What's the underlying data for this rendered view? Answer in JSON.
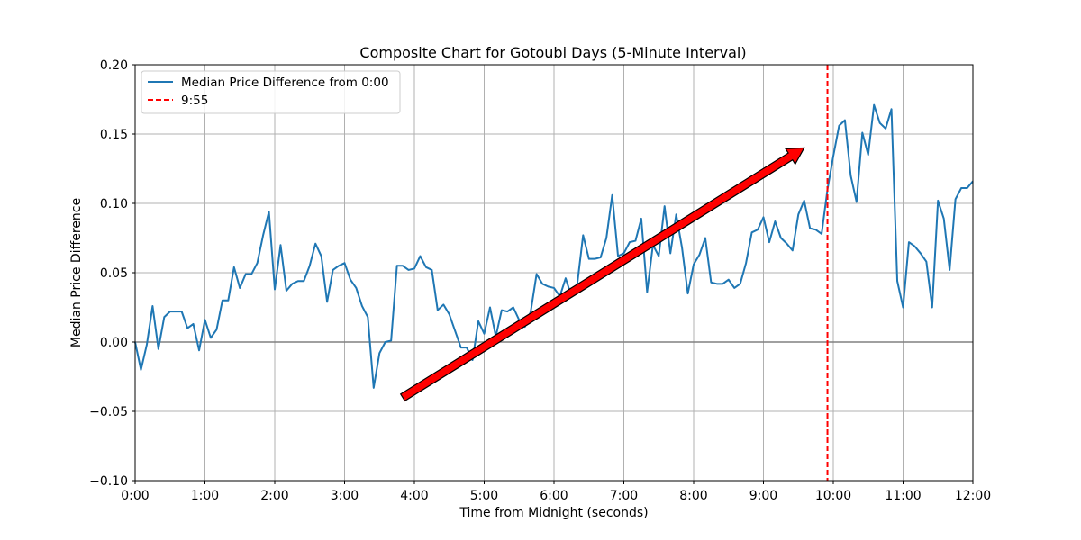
{
  "chart_data": {
    "type": "line",
    "title": "Composite Chart for Gotoubi Days (5-Minute Interval)",
    "xlabel": "Time from Midnight (seconds)",
    "ylabel": "Median Price Difference",
    "xlim_minutes": [
      0,
      720
    ],
    "ylim": [
      -0.1,
      0.2
    ],
    "x_tick_labels": [
      "0:00",
      "1:00",
      "2:00",
      "3:00",
      "4:00",
      "5:00",
      "6:00",
      "7:00",
      "8:00",
      "9:00",
      "10:00",
      "11:00",
      "12:00"
    ],
    "y_tick_labels": [
      "−0.10",
      "−0.05",
      "0.00",
      "0.05",
      "0.10",
      "0.15",
      "0.20"
    ],
    "grid": true,
    "zero_line": true,
    "legend_position": "upper-left",
    "series": [
      {
        "name": "Median Price Difference from 0:00",
        "color": "#1f77b4",
        "style": "solid",
        "x_minutes": [
          0,
          5,
          10,
          15,
          20,
          25,
          30,
          35,
          40,
          45,
          50,
          55,
          60,
          65,
          70,
          75,
          80,
          85,
          90,
          95,
          100,
          105,
          110,
          115,
          120,
          125,
          130,
          135,
          140,
          145,
          150,
          155,
          160,
          165,
          170,
          175,
          180,
          185,
          190,
          195,
          200,
          205,
          210,
          215,
          220,
          225,
          230,
          235,
          240,
          245,
          250,
          255,
          260,
          265,
          270,
          275,
          280,
          285,
          290,
          295,
          300,
          305,
          310,
          315,
          320,
          325,
          330,
          335,
          340,
          345,
          350,
          355,
          360,
          365,
          370,
          375,
          380,
          385,
          390,
          395,
          400,
          405,
          410,
          415,
          420,
          425,
          430,
          435,
          440,
          445,
          450,
          455,
          460,
          465,
          470,
          475,
          480,
          485,
          490,
          495,
          500,
          505,
          510,
          515,
          520,
          525,
          530,
          535,
          540,
          545,
          550,
          555,
          560,
          565,
          570,
          575,
          580,
          585,
          590,
          595,
          600,
          605,
          610,
          615,
          620,
          625,
          630,
          635,
          640,
          645,
          650,
          655,
          660,
          665,
          670,
          675,
          680,
          685,
          690,
          695,
          700,
          705,
          710,
          715,
          720
        ],
        "values": [
          0.0,
          -0.02,
          -0.002,
          0.026,
          -0.005,
          0.018,
          0.022,
          0.022,
          0.022,
          0.01,
          0.013,
          -0.006,
          0.016,
          0.003,
          0.009,
          0.03,
          0.03,
          0.054,
          0.039,
          0.049,
          0.049,
          0.057,
          0.077,
          0.094,
          0.038,
          0.07,
          0.037,
          0.042,
          0.044,
          0.044,
          0.055,
          0.071,
          0.062,
          0.029,
          0.052,
          0.055,
          0.057,
          0.045,
          0.039,
          0.026,
          0.018,
          -0.033,
          -0.008,
          0.0,
          0.001,
          0.055,
          0.055,
          0.052,
          0.053,
          0.062,
          0.054,
          0.052,
          0.023,
          0.027,
          0.02,
          0.008,
          -0.004,
          -0.004,
          -0.013,
          0.015,
          0.006,
          0.025,
          0.004,
          0.023,
          0.022,
          0.025,
          0.016,
          0.011,
          0.022,
          0.049,
          0.042,
          0.04,
          0.039,
          0.033,
          0.046,
          0.033,
          0.042,
          0.077,
          0.06,
          0.06,
          0.061,
          0.075,
          0.106,
          0.062,
          0.064,
          0.072,
          0.073,
          0.089,
          0.036,
          0.07,
          0.062,
          0.098,
          0.064,
          0.092,
          0.068,
          0.035,
          0.056,
          0.063,
          0.075,
          0.043,
          0.042,
          0.042,
          0.045,
          0.039,
          0.042,
          0.057,
          0.079,
          0.081,
          0.09,
          0.072,
          0.087,
          0.075,
          0.071,
          0.066,
          0.092,
          0.102,
          0.082,
          0.081,
          0.078,
          0.11,
          0.134,
          0.156,
          0.16,
          0.12,
          0.101,
          0.151,
          0.135,
          0.171,
          0.158,
          0.154,
          0.168,
          0.044,
          0.025,
          0.072,
          0.069,
          0.064,
          0.058,
          0.025,
          0.102,
          0.089,
          0.052,
          0.103,
          0.111,
          0.111,
          0.116
        ]
      },
      {
        "name": "9:55",
        "color": "#ff0000",
        "style": "dashed",
        "vertical_line_minutes": 595
      }
    ],
    "annotation_arrow": {
      "from": {
        "x_minutes": 230,
        "y": -0.04
      },
      "to": {
        "x_minutes": 575,
        "y": 0.14
      },
      "color": "#ff0000",
      "edge_color": "#000000"
    }
  }
}
